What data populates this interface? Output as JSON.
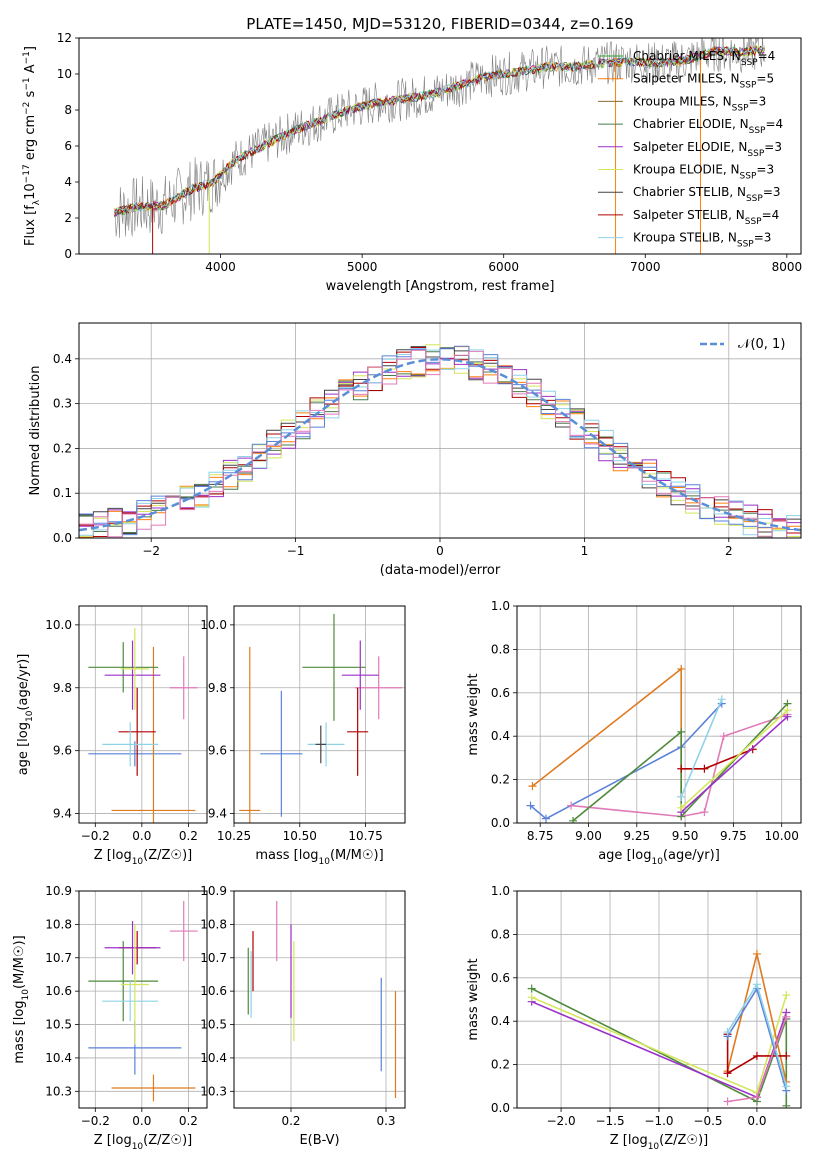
{
  "title": "PLATE=1450, MJD=53120, FIBERID=0344, z=0.169",
  "colors": {
    "cm": "#2ca02c",
    "sm": "#ff7f0e",
    "km": "#8c6d31",
    "ce": "#4a7a4a",
    "se": "#9b30c8",
    "ke": "#d4e65a",
    "cs": "#444444",
    "ss": "#b20000",
    "ks": "#8fd3e8",
    "blue": "#5a82d8",
    "orange": "#e07a1f",
    "pink": "#e07ab8",
    "green": "#4f8a3c",
    "grey": "#808080"
  },
  "chart_data": [
    {
      "id": "spectrum",
      "type": "line",
      "title": "PLATE=1450, MJD=53120, FIBERID=0344, z=0.169",
      "xlabel": "wavelength [Angstrom, rest frame]",
      "ylabel": "Flux [f",
      "xlim": [
        3000,
        8100
      ],
      "ylim": [
        0,
        12
      ],
      "xticks": [
        "4000",
        "5000",
        "6000",
        "7000",
        "8000"
      ],
      "yticks": [
        "0",
        "2",
        "4",
        "6",
        "8",
        "10",
        "12"
      ],
      "legend_position": "upper-right",
      "grid": false,
      "legend": [
        {
          "name": "Chabrier MILES, N",
          "sub": "SSP",
          "tail": "=4",
          "color": "cm"
        },
        {
          "name": "Salpeter MILES, N",
          "sub": "SSP",
          "tail": "=5",
          "color": "sm"
        },
        {
          "name": "Kroupa MILES, N",
          "sub": "SSP",
          "tail": "=3",
          "color": "km"
        },
        {
          "name": "Chabrier ELODIE, N",
          "sub": "SSP",
          "tail": "=4",
          "color": "ce"
        },
        {
          "name": "Salpeter ELODIE, N",
          "sub": "SSP",
          "tail": "=3",
          "color": "se"
        },
        {
          "name": "Kroupa ELODIE, N",
          "sub": "SSP",
          "tail": "=3",
          "color": "ke"
        },
        {
          "name": "Chabrier STELIB, N",
          "sub": "SSP",
          "tail": "=3",
          "color": "cs"
        },
        {
          "name": "Salpeter STELIB, N",
          "sub": "SSP",
          "tail": "=4",
          "color": "ss"
        },
        {
          "name": "Kroupa STELIB, N",
          "sub": "SSP",
          "tail": "=3",
          "color": "ks"
        }
      ],
      "model_points": [
        [
          3250,
          2.3
        ],
        [
          3400,
          2.6
        ],
        [
          3600,
          2.7
        ],
        [
          3800,
          3.6
        ],
        [
          3950,
          4.0
        ],
        [
          4100,
          5.2
        ],
        [
          4300,
          6.0
        ],
        [
          4500,
          6.8
        ],
        [
          4700,
          7.4
        ],
        [
          4900,
          8.0
        ],
        [
          5100,
          8.4
        ],
        [
          5300,
          8.6
        ],
        [
          5500,
          8.9
        ],
        [
          5700,
          9.4
        ],
        [
          5900,
          9.9
        ],
        [
          6100,
          10.1
        ],
        [
          6300,
          10.4
        ],
        [
          6500,
          10.4
        ],
        [
          6700,
          10.6
        ],
        [
          6900,
          10.7
        ],
        [
          7100,
          10.6
        ],
        [
          7300,
          10.8
        ],
        [
          7500,
          11.3
        ],
        [
          7700,
          11.2
        ],
        [
          7850,
          11.4
        ]
      ]
    },
    {
      "id": "residuals",
      "type": "histogram",
      "xlabel": "(data-model)/error",
      "ylabel": "Normed distribution",
      "xlim": [
        -2.5,
        2.5
      ],
      "ylim": [
        0,
        0.48
      ],
      "xticks": [
        "−2",
        "−1",
        "0",
        "1",
        "2"
      ],
      "yticks": [
        "0.0",
        "0.1",
        "0.2",
        "0.3",
        "0.4"
      ],
      "grid": true,
      "legend": [
        "𝒩(0, 1)"
      ],
      "reference_curve": "N(0,1)"
    },
    {
      "id": "age-vs-Z",
      "type": "errorbar",
      "xlabel": "Z [log",
      "ylabel": "age  [log",
      "xlim": [
        -0.27,
        0.28
      ],
      "ylim": [
        9.37,
        10.06
      ],
      "xticks": [
        "−0.2",
        "0.0",
        "0.2"
      ],
      "yticks": [
        "9.4",
        "9.6",
        "9.8",
        "10.0"
      ],
      "grid": true,
      "points": [
        {
          "x": -0.03,
          "y": 9.59,
          "xerr": 0.2,
          "yerr": 0.04,
          "c": "blue"
        },
        {
          "x": 0.05,
          "y": 9.41,
          "xerr": 0.18,
          "yerr": 0.52,
          "c": "orange"
        },
        {
          "x": 0.18,
          "y": 9.8,
          "xerr": 0.06,
          "yerr": 0.1,
          "c": "pink"
        },
        {
          "x": -0.08,
          "y": 9.865,
          "xerr": 0.15,
          "yerr": 0.08,
          "c": "green"
        },
        {
          "x": -0.02,
          "y": 9.66,
          "xerr": 0.08,
          "yerr": 0.14,
          "c": "ss"
        },
        {
          "x": -0.04,
          "y": 9.84,
          "xerr": 0.12,
          "yerr": 0.11,
          "c": "se"
        },
        {
          "x": -0.05,
          "y": 9.62,
          "xerr": 0.12,
          "yerr": 0.07,
          "c": "ks"
        },
        {
          "x": -0.03,
          "y": 9.86,
          "xerr": 0.06,
          "yerr": 0.13,
          "c": "ke"
        }
      ]
    },
    {
      "id": "age-vs-mass",
      "type": "errorbar",
      "xlabel": "mass [log",
      "ylabel": "",
      "xlim": [
        10.25,
        10.9
      ],
      "ylim": [
        9.37,
        10.06
      ],
      "xticks": [
        "10.25",
        "10.50",
        "10.75"
      ],
      "yticks": [
        "9.4",
        "9.6",
        "9.8",
        "10.0"
      ],
      "grid": true,
      "points": [
        {
          "x": 10.43,
          "y": 9.59,
          "xerr": 0.08,
          "yerr": 0.2,
          "c": "blue"
        },
        {
          "x": 10.31,
          "y": 9.41,
          "xerr": 0.04,
          "yerr": 0.52,
          "c": "orange"
        },
        {
          "x": 10.8,
          "y": 9.8,
          "xerr": 0.09,
          "yerr": 0.1,
          "c": "pink"
        },
        {
          "x": 10.63,
          "y": 9.865,
          "xerr": 0.12,
          "yerr": 0.17,
          "c": "green"
        },
        {
          "x": 10.72,
          "y": 9.66,
          "xerr": 0.04,
          "yerr": 0.14,
          "c": "ss"
        },
        {
          "x": 10.73,
          "y": 9.84,
          "xerr": 0.07,
          "yerr": 0.11,
          "c": "se"
        },
        {
          "x": 10.6,
          "y": 9.62,
          "xerr": 0.07,
          "yerr": 0.07,
          "c": "ks"
        },
        {
          "x": 10.58,
          "y": 9.62,
          "xerr": 0.02,
          "yerr": 0.06,
          "c": "cs"
        }
      ]
    },
    {
      "id": "weight-vs-age",
      "type": "line",
      "xlabel": "age  [log",
      "ylabel": "mass weight",
      "xlim": [
        8.63,
        10.1
      ],
      "ylim": [
        0,
        1
      ],
      "xticks": [
        "8.75",
        "9.00",
        "9.25",
        "9.50",
        "9.75",
        "10.00"
      ],
      "yticks": [
        "0.0",
        "0.2",
        "0.4",
        "0.6",
        "0.8",
        "1.0"
      ],
      "grid": true,
      "series": [
        {
          "c": "blue",
          "pts": [
            [
              8.7,
              0.08
            ],
            [
              8.78,
              0.02
            ],
            [
              9.48,
              0.35
            ],
            [
              9.69,
              0.55
            ]
          ]
        },
        {
          "c": "orange",
          "pts": [
            [
              8.71,
              0.17
            ],
            [
              9.48,
              0.71
            ],
            [
              9.48,
              0.12
            ]
          ]
        },
        {
          "c": "pink",
          "pts": [
            [
              8.91,
              0.08
            ],
            [
              9.48,
              0.03
            ],
            [
              9.6,
              0.05
            ],
            [
              9.7,
              0.4
            ],
            [
              10.03,
              0.5
            ]
          ]
        },
        {
          "c": "green",
          "pts": [
            [
              8.92,
              0.01
            ],
            [
              9.48,
              0.42
            ],
            [
              9.48,
              0.03
            ],
            [
              10.03,
              0.55
            ]
          ]
        },
        {
          "c": "ss",
          "pts": [
            [
              9.48,
              0.25
            ],
            [
              9.6,
              0.25
            ],
            [
              9.85,
              0.34
            ]
          ]
        },
        {
          "c": "se",
          "pts": [
            [
              9.48,
              0.05
            ],
            [
              10.03,
              0.49
            ]
          ]
        },
        {
          "c": "ke",
          "pts": [
            [
              9.48,
              0.07
            ],
            [
              10.03,
              0.52
            ]
          ]
        },
        {
          "c": "ks",
          "pts": [
            [
              9.48,
              0.12
            ],
            [
              9.69,
              0.57
            ]
          ]
        }
      ]
    },
    {
      "id": "mass-vs-Z",
      "type": "errorbar",
      "xlabel": "Z [log",
      "ylabel": "mass [log",
      "xlim": [
        -0.27,
        0.28
      ],
      "ylim": [
        10.25,
        10.9
      ],
      "xticks": [
        "−0.2",
        "0.0",
        "0.2"
      ],
      "yticks": [
        "10.3",
        "10.4",
        "10.5",
        "10.6",
        "10.7",
        "10.8",
        "10.9"
      ],
      "grid": true,
      "points": [
        {
          "x": -0.03,
          "y": 10.43,
          "xerr": 0.2,
          "yerr": 0.08,
          "c": "blue"
        },
        {
          "x": 0.05,
          "y": 10.31,
          "xerr": 0.18,
          "yerr": 0.04,
          "c": "orange"
        },
        {
          "x": 0.18,
          "y": 10.78,
          "xerr": 0.06,
          "yerr": 0.09,
          "c": "pink"
        },
        {
          "x": -0.08,
          "y": 10.63,
          "xerr": 0.15,
          "yerr": 0.12,
          "c": "green"
        },
        {
          "x": -0.02,
          "y": 10.73,
          "xerr": 0.08,
          "yerr": 0.05,
          "c": "ss"
        },
        {
          "x": -0.04,
          "y": 10.73,
          "xerr": 0.12,
          "yerr": 0.08,
          "c": "se"
        },
        {
          "x": -0.05,
          "y": 10.57,
          "xerr": 0.12,
          "yerr": 0.06,
          "c": "ks"
        },
        {
          "x": -0.03,
          "y": 10.62,
          "xerr": 0.06,
          "yerr": 0.18,
          "c": "ke"
        }
      ]
    },
    {
      "id": "mass-vs-EBV",
      "type": "errorbar",
      "xlabel": "E(B-V)",
      "ylabel": "",
      "xlim": [
        0.14,
        0.32
      ],
      "ylim": [
        10.25,
        10.9
      ],
      "xticks": [
        "0.2",
        "0.3"
      ],
      "yticks": [
        "10.3",
        "10.4",
        "10.5",
        "10.6",
        "10.7",
        "10.8",
        "10.9"
      ],
      "grid": true,
      "points": [
        {
          "x": 0.155,
          "y": 10.63,
          "xerr": 0,
          "yerr": 0.1,
          "c": "green"
        },
        {
          "x": 0.16,
          "y": 10.69,
          "xerr": 0,
          "yerr": 0.09,
          "c": "ss"
        },
        {
          "x": 0.158,
          "y": 10.62,
          "xerr": 0,
          "yerr": 0.1,
          "c": "ks"
        },
        {
          "x": 0.185,
          "y": 10.78,
          "xerr": 0,
          "yerr": 0.09,
          "c": "pink"
        },
        {
          "x": 0.2,
          "y": 10.66,
          "xerr": 0,
          "yerr": 0.14,
          "c": "se"
        },
        {
          "x": 0.203,
          "y": 10.6,
          "xerr": 0,
          "yerr": 0.15,
          "c": "ke"
        },
        {
          "x": 0.295,
          "y": 10.5,
          "xerr": 0,
          "yerr": 0.14,
          "c": "blue"
        },
        {
          "x": 0.31,
          "y": 10.44,
          "xerr": 0,
          "yerr": 0.16,
          "c": "orange"
        }
      ]
    },
    {
      "id": "weight-vs-Z",
      "type": "line",
      "xlabel": "Z [log",
      "ylabel": "mass weight",
      "xlim": [
        -2.45,
        0.45
      ],
      "ylim": [
        0,
        1
      ],
      "xticks": [
        "−2.0",
        "−1.5",
        "−1.0",
        "−0.5",
        "0.0"
      ],
      "yticks": [
        "0.0",
        "0.2",
        "0.4",
        "0.6",
        "0.8",
        "1.0"
      ],
      "grid": true,
      "series": [
        {
          "c": "green",
          "pts": [
            [
              -2.3,
              0.55
            ],
            [
              0.0,
              0.03
            ],
            [
              0.3,
              0.41
            ],
            [
              0.3,
              0.01
            ]
          ]
        },
        {
          "c": "se",
          "pts": [
            [
              -2.3,
              0.49
            ],
            [
              0.0,
              0.05
            ],
            [
              0.3,
              0.44
            ]
          ]
        },
        {
          "c": "ke",
          "pts": [
            [
              -2.3,
              0.51
            ],
            [
              0.0,
              0.07
            ],
            [
              0.3,
              0.52
            ]
          ]
        },
        {
          "c": "orange",
          "pts": [
            [
              -0.3,
              0.17
            ],
            [
              0.0,
              0.71
            ],
            [
              0.3,
              0.12
            ]
          ]
        },
        {
          "c": "ss",
          "pts": [
            [
              -0.3,
              0.34
            ],
            [
              -0.3,
              0.16
            ],
            [
              0.0,
              0.24
            ],
            [
              0.3,
              0.24
            ]
          ]
        },
        {
          "c": "blue",
          "pts": [
            [
              -0.3,
              0.33
            ],
            [
              0.0,
              0.55
            ],
            [
              0.3,
              0.08
            ]
          ]
        },
        {
          "c": "ks",
          "pts": [
            [
              -0.3,
              0.35
            ],
            [
              0.0,
              0.57
            ],
            [
              0.3,
              0.1
            ]
          ]
        },
        {
          "c": "pink",
          "pts": [
            [
              -0.3,
              0.03
            ],
            [
              0.0,
              0.05
            ],
            [
              0.3,
              0.42
            ]
          ]
        }
      ]
    }
  ]
}
